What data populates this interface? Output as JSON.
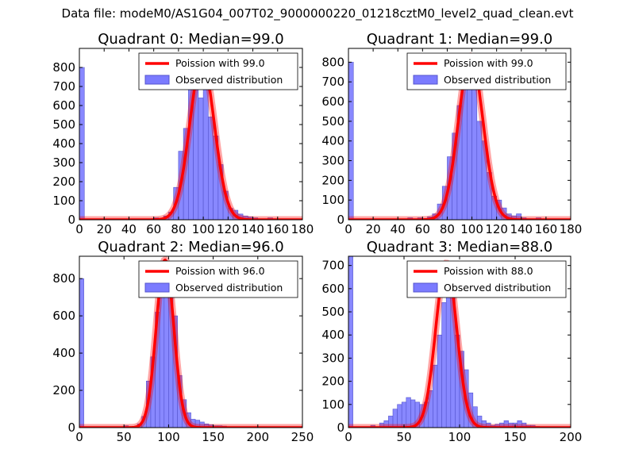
{
  "suptitle": "Data file: modeM0/AS1G04_007T02_9000000220_01218cztM0_level2_quad_clean.evt",
  "colors": {
    "poisson": "#ff0000",
    "hist_fill": "#7b7bff",
    "hist_edge": "#5555cc"
  },
  "chart_data": [
    {
      "type": "bar",
      "title": "Quadrant 0: Median=99.0",
      "legend": {
        "position": "top-right",
        "entries": [
          "Poission with 99.0",
          "Observed distribution"
        ]
      },
      "xlim": [
        0,
        180
      ],
      "ylim": [
        0,
        900
      ],
      "xticks": [
        0,
        20,
        40,
        60,
        80,
        100,
        120,
        140,
        160,
        180
      ],
      "yticks": [
        0,
        100,
        200,
        300,
        400,
        500,
        600,
        700,
        800
      ],
      "median": 99.0,
      "bin_width": 4,
      "poisson_peak": 830,
      "bins_left": [
        0,
        60,
        64,
        68,
        72,
        76,
        80,
        84,
        88,
        92,
        96,
        100,
        104,
        108,
        112,
        116,
        120,
        124,
        128,
        132,
        136,
        140,
        144,
        148,
        152,
        156,
        160
      ],
      "counts": [
        800,
        10,
        5,
        20,
        40,
        170,
        360,
        480,
        700,
        820,
        640,
        820,
        540,
        440,
        290,
        150,
        60,
        50,
        30,
        20,
        15,
        10,
        5,
        5,
        10,
        5,
        3
      ]
    },
    {
      "type": "bar",
      "title": "Quadrant 1: Median=99.0",
      "legend": {
        "position": "top-right",
        "entries": [
          "Poission with 99.0",
          "Observed distribution"
        ]
      },
      "xlim": [
        0,
        180
      ],
      "ylim": [
        0,
        870
      ],
      "xticks": [
        0,
        20,
        40,
        60,
        80,
        100,
        120,
        140,
        160,
        180
      ],
      "yticks": [
        0,
        100,
        200,
        300,
        400,
        500,
        600,
        700,
        800
      ],
      "median": 99.0,
      "bin_width": 4,
      "poisson_peak": 830,
      "bins_left": [
        0,
        48,
        56,
        64,
        68,
        72,
        76,
        80,
        84,
        88,
        92,
        96,
        100,
        104,
        108,
        112,
        116,
        120,
        124,
        128,
        132,
        136,
        140,
        144,
        148,
        152
      ],
      "counts": [
        800,
        10,
        10,
        15,
        30,
        80,
        170,
        320,
        440,
        580,
        730,
        810,
        700,
        500,
        400,
        240,
        120,
        100,
        60,
        30,
        20,
        30,
        10,
        5,
        5,
        10
      ]
    },
    {
      "type": "bar",
      "title": "Quadrant 2: Median=96.0",
      "legend": {
        "position": "top-right",
        "entries": [
          "Poission with 96.0",
          "Observed distribution"
        ]
      },
      "xlim": [
        0,
        250
      ],
      "ylim": [
        0,
        920
      ],
      "xticks": [
        0,
        50,
        100,
        150,
        200,
        250
      ],
      "yticks": [
        0,
        200,
        400,
        600,
        800
      ],
      "median": 96.0,
      "bin_width": 5,
      "poisson_peak": 900,
      "bins_left": [
        0,
        50,
        65,
        70,
        75,
        80,
        85,
        90,
        95,
        100,
        105,
        110,
        115,
        120,
        125,
        130,
        135,
        140,
        145,
        150,
        155,
        160,
        165,
        205
      ],
      "counts": [
        800,
        10,
        20,
        60,
        250,
        380,
        620,
        820,
        880,
        750,
        600,
        280,
        150,
        80,
        45,
        40,
        30,
        20,
        15,
        10,
        10,
        8,
        5,
        5
      ]
    },
    {
      "type": "bar",
      "title": "Quadrant 3: Median=88.0",
      "legend": {
        "position": "top-right",
        "entries": [
          "Poission with 88.0",
          "Observed distribution"
        ]
      },
      "xlim": [
        0,
        200
      ],
      "ylim": [
        0,
        740
      ],
      "xticks": [
        0,
        50,
        100,
        150,
        200
      ],
      "yticks": [
        0,
        100,
        200,
        300,
        400,
        500,
        600,
        700
      ],
      "median": 88.0,
      "bin_width": 4,
      "poisson_peak": 710,
      "bins_left": [
        0,
        20,
        28,
        32,
        36,
        40,
        44,
        48,
        52,
        56,
        60,
        64,
        68,
        72,
        76,
        80,
        84,
        88,
        92,
        96,
        100,
        104,
        108,
        112,
        116,
        120,
        124,
        128,
        132,
        136,
        140,
        144,
        148,
        152,
        156,
        160,
        164,
        168
      ],
      "counts": [
        740,
        10,
        20,
        30,
        50,
        80,
        100,
        110,
        130,
        120,
        110,
        100,
        110,
        160,
        270,
        400,
        540,
        690,
        600,
        400,
        330,
        250,
        150,
        90,
        50,
        30,
        20,
        10,
        15,
        20,
        30,
        20,
        20,
        30,
        20,
        10,
        10,
        5
      ]
    }
  ]
}
